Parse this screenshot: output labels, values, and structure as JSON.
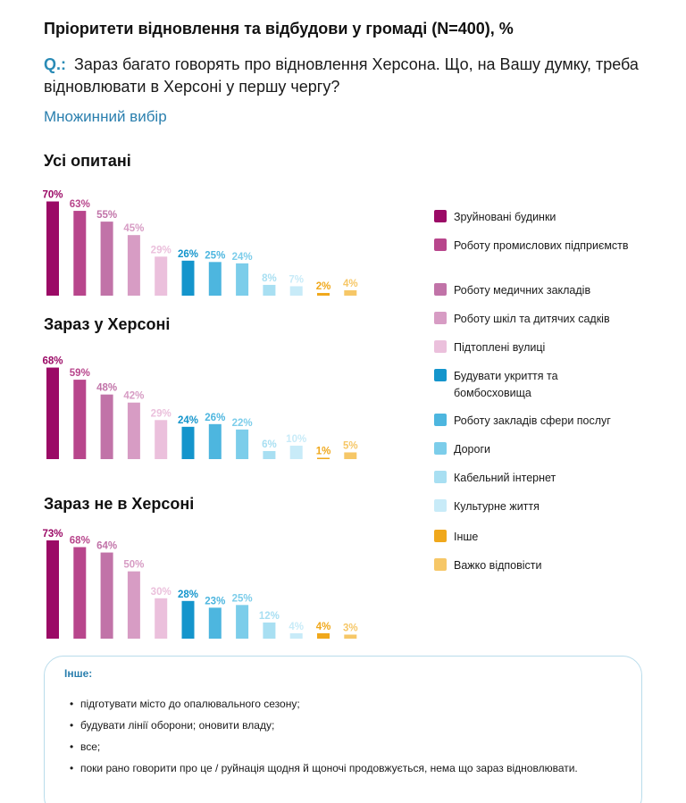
{
  "page": {
    "title": "Пріоритети відновлення та відбудови у громаді (N=400), %",
    "question_label": "Q.:",
    "question_text": "Зараз багато говорять про відновлення Херсона. Що, на Вашу думку, треба відновлювати в Херсоні у першу чергу?",
    "subtitle": "Множинний вибір"
  },
  "legend": [
    {
      "label": "Зруйновані будинки",
      "color": "#9b0a66"
    },
    {
      "label": "Роботу промислових підприємств",
      "color": "#b8468c"
    },
    {
      "label": "Роботу медичних закладів",
      "color": "#c173a8"
    },
    {
      "label": "Роботу шкіл та дитячих садків",
      "color": "#d79cc4"
    },
    {
      "label": "Підтоплені вулиці",
      "color": "#ebc0dc"
    },
    {
      "label": "Будувати укриття та бомбосховища",
      "color": "#1495cc"
    },
    {
      "label": "Роботу закладів сфери послуг",
      "color": "#4db6df"
    },
    {
      "label": "Дороги",
      "color": "#7ccdea"
    },
    {
      "label": "Кабельний інтернет",
      "color": "#a8dff2"
    },
    {
      "label": "Культурне життя",
      "color": "#c8ebf8"
    },
    {
      "label": "Інше",
      "color": "#f0a81c"
    },
    {
      "label": "Важко відповісти",
      "color": "#f6c767"
    }
  ],
  "chart_data": [
    {
      "type": "bar",
      "title": "Усі опитані",
      "categories": [
        "Зруйновані будинки",
        "Роботу промислових підприємств",
        "Роботу медичних закладів",
        "Роботу шкіл та дитячих садків",
        "Підтоплені вулиці",
        "Будувати укриття та бомбосховища",
        "Роботу закладів сфери послуг",
        "Дороги",
        "Кабельний інтернет",
        "Культурне життя",
        "Інше",
        "Важко відповісти"
      ],
      "values": [
        70,
        63,
        55,
        45,
        29,
        26,
        25,
        24,
        8,
        7,
        2,
        4
      ],
      "labels": [
        "70%",
        "63%",
        "55%",
        "45%",
        "29%",
        "26%",
        "25%",
        "24%",
        "8%",
        "7%",
        "2%",
        "4%"
      ]
    },
    {
      "type": "bar",
      "title": "Зараз у Херсоні",
      "categories": [
        "Зруйновані будинки",
        "Роботу промислових підприємств",
        "Роботу медичних закладів",
        "Роботу шкіл та дитячих садків",
        "Підтоплені вулиці",
        "Будувати укриття та бомбосховища",
        "Роботу закладів сфери послуг",
        "Дороги",
        "Кабельний інтернет",
        "Культурне життя",
        "Інше",
        "Важко відповісти"
      ],
      "values": [
        68,
        59,
        48,
        42,
        29,
        24,
        26,
        22,
        6,
        10,
        1,
        5
      ],
      "labels": [
        "68%",
        "59%",
        "48%",
        "42%",
        "29%",
        "24%",
        "26%",
        "22%",
        "6%",
        "10%",
        "1%",
        "5%"
      ]
    },
    {
      "type": "bar",
      "title": "Зараз не в Херсоні",
      "categories": [
        "Зруйновані будинки",
        "Роботу промислових підприємств",
        "Роботу медичних закладів",
        "Роботу шкіл та дитячих садків",
        "Підтоплені вулиці",
        "Будувати укриття та бомбосховища",
        "Роботу закладів сфери послуг",
        "Дороги",
        "Кабельний інтернет",
        "Культурне життя",
        "Інше",
        "Важко відповісти"
      ],
      "values": [
        73,
        68,
        64,
        50,
        30,
        28,
        23,
        25,
        12,
        4,
        4,
        3
      ],
      "labels": [
        "73%",
        "68%",
        "64%",
        "50%",
        "30%",
        "28%",
        "23%",
        "25%",
        "12%",
        "4%",
        "4%",
        "3%"
      ]
    }
  ],
  "other_box": {
    "title": "Інше:",
    "items": [
      "підготувати місто до опалювального сезону;",
      "будувати лінії оборони; оновити владу;",
      "все;",
      "поки рано говорити про це / руйнація щодня й щоночі продовжується, нема що зараз відновлювати."
    ]
  }
}
